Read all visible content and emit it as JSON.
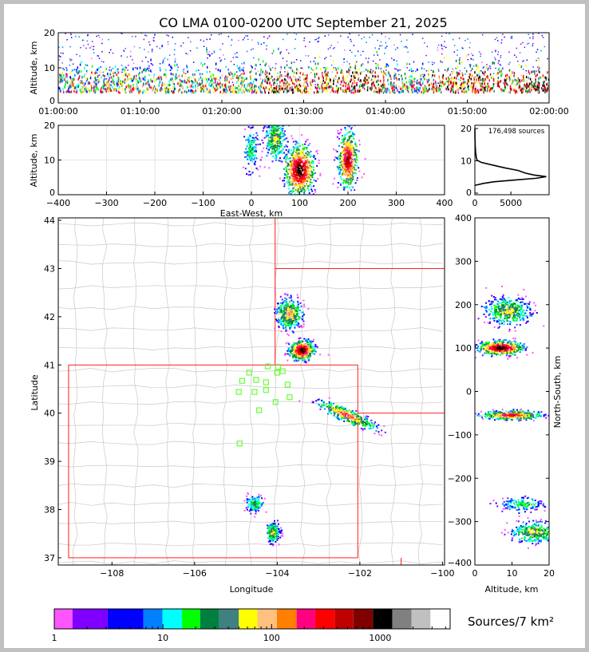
{
  "chart_data": [
    {
      "id": "time_altitude",
      "type": "heatmap",
      "title": "CO LMA 0100-0200 UTC September 21, 2025",
      "xlabel": "",
      "ylabel": "Altitude, km",
      "xticks": [
        "01:00:00",
        "01:10:00",
        "01:20:00",
        "01:30:00",
        "01:40:00",
        "01:50:00",
        "02:00:00"
      ],
      "xlim_minutes": [
        0,
        60
      ],
      "ylim": [
        0,
        20
      ],
      "yticks": [
        0,
        10,
        20
      ]
    },
    {
      "id": "eastwest_altitude",
      "type": "heatmap",
      "xlabel": "East-West, km",
      "ylabel": "Altitude, km",
      "xlim": [
        -400,
        400
      ],
      "xticks": [
        -400,
        -300,
        -200,
        -100,
        0,
        100,
        200,
        300,
        400
      ],
      "ylim": [
        0,
        20
      ],
      "yticks": [
        0,
        10,
        20
      ],
      "clusters": [
        {
          "x": 0,
          "alt": 13,
          "sx": 8,
          "salt": 3,
          "n": 150,
          "peak": 0.3
        },
        {
          "x": 50,
          "alt": 16,
          "sx": 10,
          "salt": 3,
          "n": 300,
          "peak": 0.5
        },
        {
          "x": 100,
          "alt": 7,
          "sx": 15,
          "salt": 3.5,
          "n": 700,
          "peak": 1.0
        },
        {
          "x": 200,
          "alt": 10,
          "sx": 10,
          "salt": 4,
          "n": 500,
          "peak": 0.9
        }
      ]
    },
    {
      "id": "altitude_histogram",
      "type": "line",
      "annotation": "176,498 sources",
      "xlim": [
        0,
        10300
      ],
      "xticks": [
        0,
        5000
      ],
      "ylim": [
        -0.5,
        21
      ],
      "yticks": [
        0,
        10,
        20
      ],
      "altitude_km": [
        2.4,
        3.0,
        3.5,
        4.0,
        4.6,
        5.1,
        5.6,
        6.2,
        7.0,
        7.8,
        8.5,
        9.5,
        10.2,
        11.0,
        12.7,
        15.0,
        17.5,
        20.0
      ],
      "count": [
        0,
        1200,
        2600,
        5200,
        8500,
        9900,
        8200,
        7000,
        6000,
        4200,
        2800,
        900,
        300,
        200,
        100,
        40,
        10,
        0
      ]
    },
    {
      "id": "plan_view",
      "type": "heatmap",
      "xlabel": "Longitude",
      "ylabel": "Latitude",
      "xlim": [
        -109.3,
        -99.95
      ],
      "xticks": [
        -108,
        -106,
        -104,
        -102,
        -100
      ],
      "xtick_labels": [
        "−108",
        "−106",
        "−104",
        "−102",
        "−100"
      ],
      "ylim": [
        36.85,
        44.05
      ],
      "yticks": [
        37,
        38,
        39,
        40,
        41,
        42,
        43,
        44
      ],
      "clusters": [
        {
          "lon": -103.7,
          "lat": 42.05,
          "slon": 0.15,
          "slat": 0.15,
          "n": 400,
          "peak": 0.6
        },
        {
          "lon": -103.4,
          "lat": 41.3,
          "slon": 0.15,
          "slat": 0.1,
          "n": 500,
          "peak": 1.0
        },
        {
          "lon": -102.3,
          "lat": 39.95,
          "slon": 0.35,
          "slat": 0.07,
          "n": 350,
          "peak": 0.7,
          "tilt": -0.35
        },
        {
          "lon": -104.55,
          "lat": 38.12,
          "slon": 0.1,
          "slat": 0.08,
          "n": 150,
          "peak": 0.4
        },
        {
          "lon": -104.1,
          "lat": 37.52,
          "slon": 0.08,
          "slat": 0.1,
          "n": 200,
          "peak": 0.5
        }
      ],
      "stations": [
        {
          "lon": -104.68,
          "lat": 40.84
        },
        {
          "lon": -104.85,
          "lat": 40.67
        },
        {
          "lon": -104.51,
          "lat": 40.69
        },
        {
          "lon": -104.27,
          "lat": 40.64
        },
        {
          "lon": -104.0,
          "lat": 40.84
        },
        {
          "lon": -103.87,
          "lat": 40.87
        },
        {
          "lon": -103.98,
          "lat": 40.96
        },
        {
          "lon": -104.23,
          "lat": 40.97
        },
        {
          "lon": -104.55,
          "lat": 40.44
        },
        {
          "lon": -104.93,
          "lat": 40.44
        },
        {
          "lon": -104.27,
          "lat": 40.48
        },
        {
          "lon": -103.75,
          "lat": 40.59
        },
        {
          "lon": -103.7,
          "lat": 40.33
        },
        {
          "lon": -104.04,
          "lat": 40.23
        },
        {
          "lon": -104.44,
          "lat": 40.06
        },
        {
          "lon": -104.91,
          "lat": 39.37
        }
      ]
    },
    {
      "id": "altitude_northsouth",
      "type": "heatmap",
      "xlabel": "Altitude, km",
      "ylabel": "North-South, km",
      "xlim": [
        0,
        20
      ],
      "xticks": [
        0,
        10,
        20
      ],
      "ylim": [
        -400,
        400
      ],
      "yticks": [
        -400,
        -300,
        -200,
        -100,
        0,
        100,
        200,
        300,
        400
      ],
      "clusters": [
        {
          "alt": 9,
          "y": 185,
          "salt": 3,
          "sy": 15,
          "n": 400,
          "peak": 0.5
        },
        {
          "alt": 7,
          "y": 100,
          "salt": 3,
          "sy": 8,
          "n": 500,
          "peak": 1.0
        },
        {
          "alt": 10,
          "y": -55,
          "salt": 4,
          "sy": 5,
          "n": 450,
          "peak": 0.8
        },
        {
          "alt": 13,
          "y": -260,
          "salt": 3,
          "sy": 8,
          "n": 150,
          "peak": 0.3
        },
        {
          "alt": 16,
          "y": -325,
          "salt": 3,
          "sy": 12,
          "n": 300,
          "peak": 0.5
        }
      ]
    }
  ],
  "colorbar": {
    "label": "Sources/7 km²",
    "tick_labels": [
      "1",
      "10",
      "100",
      "1000"
    ],
    "tick_values": [
      1,
      10,
      100,
      1000
    ],
    "boundaries": [
      1,
      1.47,
      3.1,
      6.6,
      9.9,
      15,
      22,
      33,
      50,
      74,
      112,
      170,
      252,
      380,
      566,
      858,
      1290,
      1940,
      2900,
      4400
    ],
    "colors": [
      "#ff55ff",
      "#8000ff",
      "#0000ff",
      "#0080ff",
      "#00ffff",
      "#00ff00",
      "#008040",
      "#408080",
      "#ffff00",
      "#ffc080",
      "#ff8000",
      "#ff0080",
      "#ff0000",
      "#c00000",
      "#800000",
      "#000000",
      "#808080",
      "#c0c0c0",
      "#ffffff"
    ]
  }
}
